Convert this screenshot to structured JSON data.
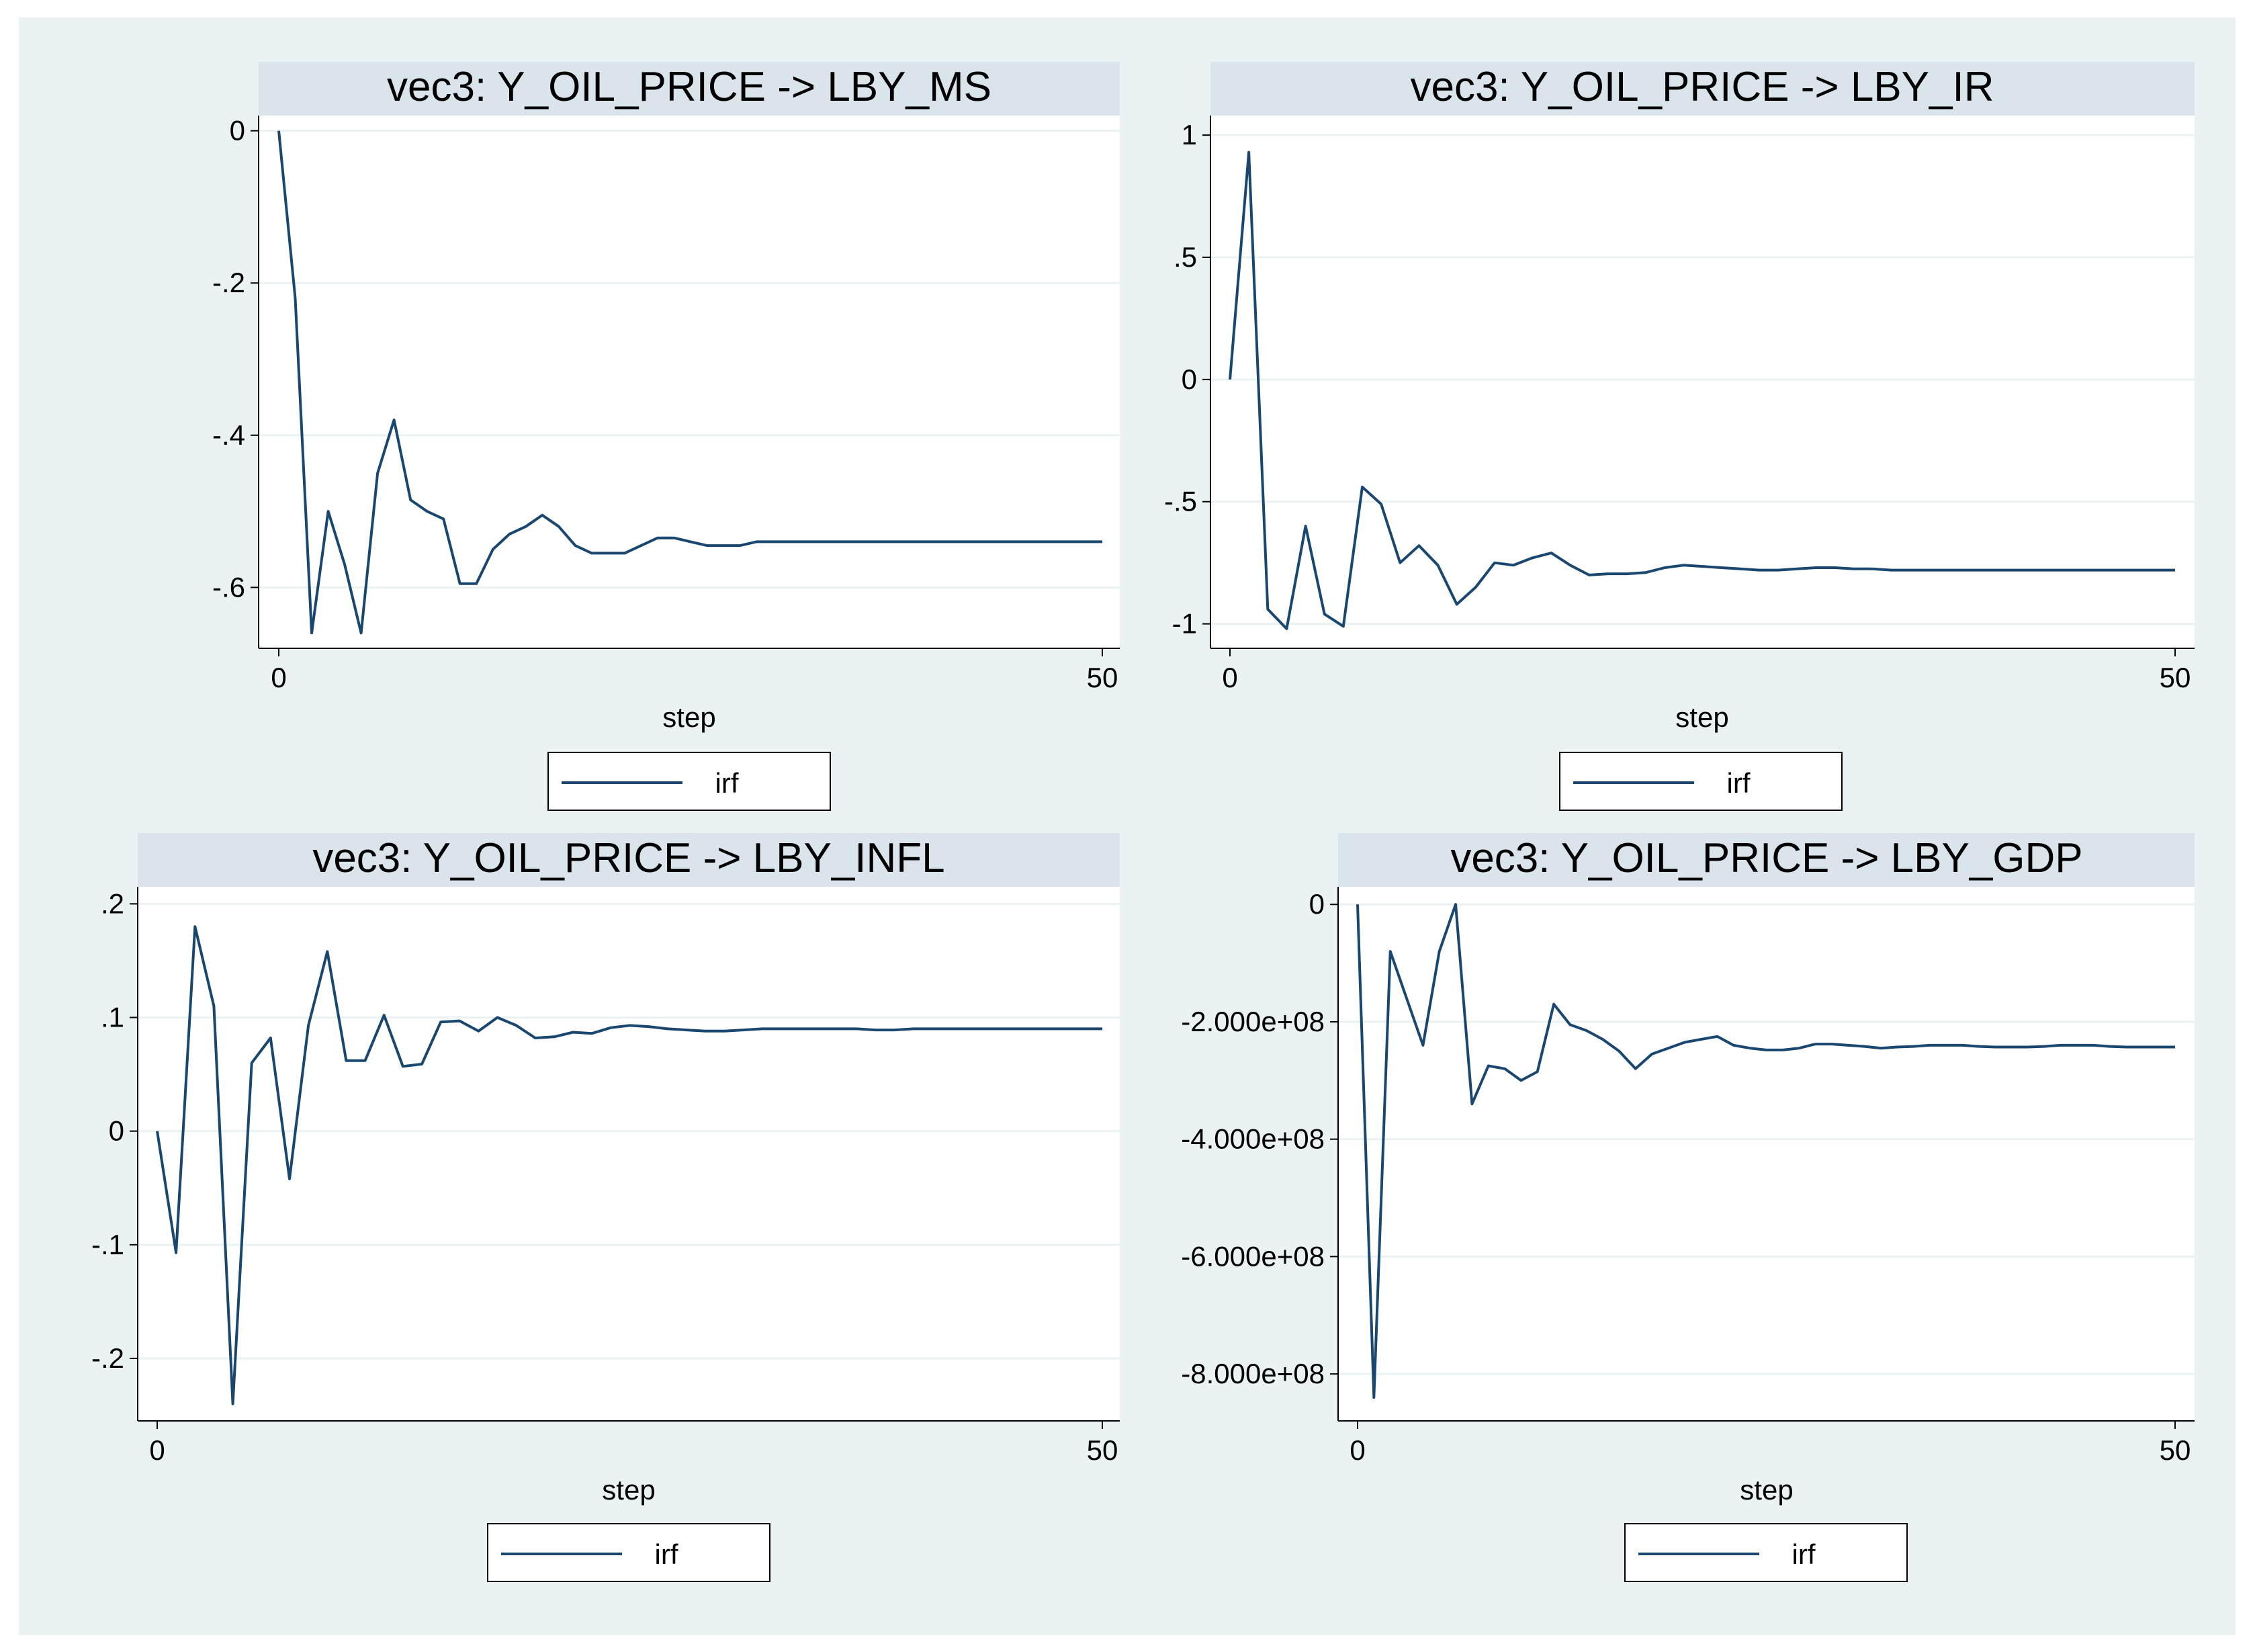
{
  "colors": {
    "background": "#eaf2f3",
    "panel": "#ffffff",
    "title_band": "#d9e5eb",
    "line": "#1a476f",
    "grid": "#eaf2f3",
    "axis": "#000000"
  },
  "chart_data": [
    {
      "type": "line",
      "title": "vec3: Y_OIL_PRICE -> LBY_MS",
      "xlabel": "step",
      "ylabel": "",
      "xlim": [
        0,
        50
      ],
      "ylim": [
        -0.68,
        0.02
      ],
      "xticks": [
        0,
        50
      ],
      "xtick_labels": [
        "0",
        "50"
      ],
      "yticks": [
        0,
        -0.2,
        -0.4,
        -0.6
      ],
      "ytick_labels": [
        "0",
        "-.2",
        "-.4",
        "-.6"
      ],
      "grid": true,
      "legend_position": "bottom",
      "series": [
        {
          "name": "irf",
          "x": [
            0,
            1,
            2,
            3,
            4,
            5,
            6,
            7,
            8,
            9,
            10,
            11,
            12,
            13,
            14,
            15,
            16,
            17,
            18,
            19,
            20,
            21,
            22,
            23,
            24,
            25,
            26,
            27,
            28,
            29,
            30,
            31,
            32,
            33,
            34,
            35,
            36,
            37,
            38,
            39,
            40,
            41,
            42,
            43,
            44,
            45,
            46,
            47,
            48,
            49,
            50
          ],
          "y": [
            0,
            -0.22,
            -0.66,
            -0.5,
            -0.57,
            -0.66,
            -0.45,
            -0.38,
            -0.485,
            -0.5,
            -0.51,
            -0.595,
            -0.595,
            -0.55,
            -0.53,
            -0.52,
            -0.505,
            -0.52,
            -0.545,
            -0.555,
            -0.555,
            -0.555,
            -0.545,
            -0.535,
            -0.535,
            -0.54,
            -0.545,
            -0.545,
            -0.545,
            -0.54,
            -0.54,
            -0.54,
            -0.54,
            -0.54,
            -0.54,
            -0.54,
            -0.54,
            -0.54,
            -0.54,
            -0.54,
            -0.54,
            -0.54,
            -0.54,
            -0.54,
            -0.54,
            -0.54,
            -0.54,
            -0.54,
            -0.54,
            -0.54,
            -0.54
          ]
        }
      ]
    },
    {
      "type": "line",
      "title": "vec3: Y_OIL_PRICE -> LBY_IR",
      "xlabel": "step",
      "ylabel": "",
      "xlim": [
        0,
        50
      ],
      "ylim": [
        -1.1,
        1.08
      ],
      "xticks": [
        0,
        50
      ],
      "xtick_labels": [
        "0",
        "50"
      ],
      "yticks": [
        1,
        0.5,
        0,
        -0.5,
        -1
      ],
      "ytick_labels": [
        "1",
        ".5",
        "0",
        "-.5",
        "-1"
      ],
      "grid": true,
      "legend_position": "bottom",
      "series": [
        {
          "name": "irf",
          "x": [
            0,
            1,
            2,
            3,
            4,
            5,
            6,
            7,
            8,
            9,
            10,
            11,
            12,
            13,
            14,
            15,
            16,
            17,
            18,
            19,
            20,
            21,
            22,
            23,
            24,
            25,
            26,
            27,
            28,
            29,
            30,
            31,
            32,
            33,
            34,
            35,
            36,
            37,
            38,
            39,
            40,
            41,
            42,
            43,
            44,
            45,
            46,
            47,
            48,
            49,
            50
          ],
          "y": [
            0,
            0.93,
            -0.94,
            -1.02,
            -0.6,
            -0.96,
            -1.01,
            -0.44,
            -0.51,
            -0.75,
            -0.68,
            -0.76,
            -0.92,
            -0.85,
            -0.75,
            -0.76,
            -0.73,
            -0.71,
            -0.76,
            -0.8,
            -0.795,
            -0.795,
            -0.79,
            -0.77,
            -0.76,
            -0.765,
            -0.77,
            -0.775,
            -0.78,
            -0.78,
            -0.775,
            -0.77,
            -0.77,
            -0.775,
            -0.775,
            -0.78,
            -0.78,
            -0.78,
            -0.78,
            -0.78,
            -0.78,
            -0.78,
            -0.78,
            -0.78,
            -0.78,
            -0.78,
            -0.78,
            -0.78,
            -0.78,
            -0.78,
            -0.78
          ]
        }
      ]
    },
    {
      "type": "line",
      "title": "vec3: Y_OIL_PRICE -> LBY_INFL",
      "xlabel": "step",
      "ylabel": "",
      "xlim": [
        0,
        50
      ],
      "ylim": [
        -0.255,
        0.215
      ],
      "xticks": [
        0,
        50
      ],
      "xtick_labels": [
        "0",
        "50"
      ],
      "yticks": [
        0.2,
        0.1,
        0,
        -0.1,
        -0.2
      ],
      "ytick_labels": [
        ".2",
        ".1",
        "0",
        "-.1",
        "-.2"
      ],
      "grid": true,
      "legend_position": "bottom",
      "series": [
        {
          "name": "irf",
          "x": [
            0,
            1,
            2,
            3,
            4,
            5,
            6,
            7,
            8,
            9,
            10,
            11,
            12,
            13,
            14,
            15,
            16,
            17,
            18,
            19,
            20,
            21,
            22,
            23,
            24,
            25,
            26,
            27,
            28,
            29,
            30,
            31,
            32,
            33,
            34,
            35,
            36,
            37,
            38,
            39,
            40,
            41,
            42,
            43,
            44,
            45,
            46,
            47,
            48,
            49,
            50
          ],
          "y": [
            0,
            -0.107,
            0.18,
            0.11,
            -0.24,
            0.06,
            0.082,
            -0.042,
            0.093,
            0.158,
            0.062,
            0.062,
            0.102,
            0.057,
            0.059,
            0.096,
            0.097,
            0.088,
            0.1,
            0.093,
            0.082,
            0.083,
            0.087,
            0.086,
            0.091,
            0.093,
            0.092,
            0.09,
            0.089,
            0.088,
            0.088,
            0.089,
            0.09,
            0.09,
            0.09,
            0.09,
            0.09,
            0.09,
            0.089,
            0.089,
            0.09,
            0.09,
            0.09,
            0.09,
            0.09,
            0.09,
            0.09,
            0.09,
            0.09,
            0.09,
            0.09
          ]
        }
      ]
    },
    {
      "type": "line",
      "title": "vec3: Y_OIL_PRICE -> LBY_GDP",
      "xlabel": "step",
      "ylabel": "",
      "xlim": [
        0,
        50
      ],
      "ylim": [
        -880000000,
        30000000
      ],
      "xticks": [
        0,
        50
      ],
      "xtick_labels": [
        "0",
        "50"
      ],
      "yticks": [
        0,
        -200000000,
        -400000000,
        -600000000,
        -800000000
      ],
      "ytick_labels": [
        "0",
        "-2.000e+08",
        "-4.000e+08",
        "-6.000e+08",
        "-8.000e+08"
      ],
      "grid": true,
      "legend_position": "bottom",
      "series": [
        {
          "name": "irf",
          "x": [
            0,
            1,
            2,
            3,
            4,
            5,
            6,
            7,
            8,
            9,
            10,
            11,
            12,
            13,
            14,
            15,
            16,
            17,
            18,
            19,
            20,
            21,
            22,
            23,
            24,
            25,
            26,
            27,
            28,
            29,
            30,
            31,
            32,
            33,
            34,
            35,
            36,
            37,
            38,
            39,
            40,
            41,
            42,
            43,
            44,
            45,
            46,
            47,
            48,
            49,
            50
          ],
          "y": [
            0,
            -840000000,
            -80000000,
            -160000000,
            -240000000,
            -80000000,
            0,
            -340000000,
            -275000000,
            -280000000,
            -300000000,
            -285000000,
            -170000000,
            -205000000,
            -215000000,
            -230000000,
            -250000000,
            -280000000,
            -255000000,
            -245000000,
            -235000000,
            -230000000,
            -225000000,
            -240000000,
            -245000000,
            -248000000,
            -248000000,
            -245000000,
            -238000000,
            -238000000,
            -240000000,
            -242000000,
            -245000000,
            -243000000,
            -242000000,
            -240000000,
            -240000000,
            -240000000,
            -242000000,
            -243000000,
            -243000000,
            -243000000,
            -242000000,
            -240000000,
            -240000000,
            -240000000,
            -242000000,
            -243000000,
            -243000000,
            -243000000,
            -243000000
          ]
        }
      ]
    }
  ]
}
